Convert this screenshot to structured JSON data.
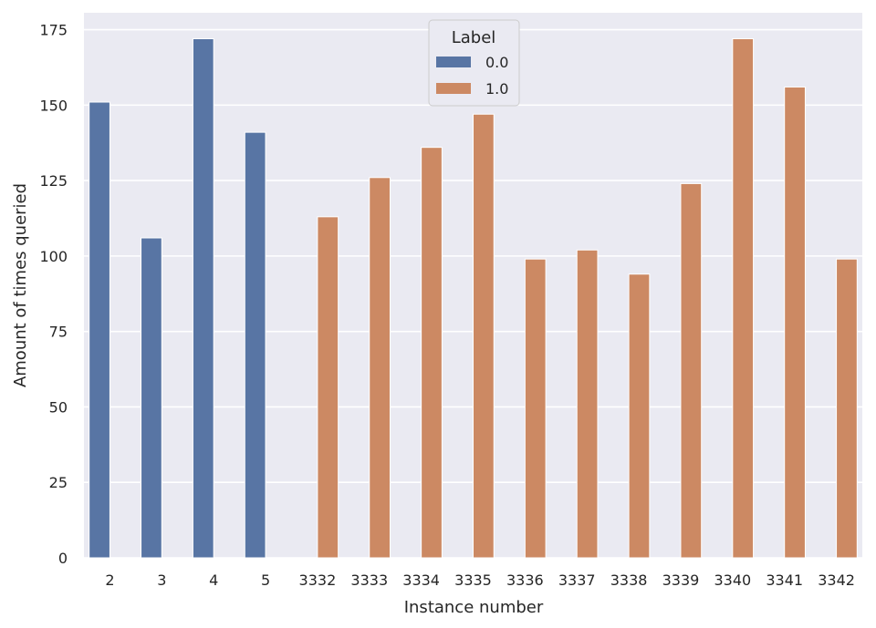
{
  "chart_data": {
    "type": "bar",
    "xlabel": "Instance number",
    "ylabel": "Amount of times queried",
    "categories": [
      "2",
      "3",
      "4",
      "5",
      "3332",
      "3333",
      "3334",
      "3335",
      "3336",
      "3337",
      "3338",
      "3339",
      "3340",
      "3341",
      "3342"
    ],
    "legend": {
      "title": "Label",
      "position": "top-center"
    },
    "series": [
      {
        "name": "0.0",
        "color": "#5875a4",
        "values": [
          151,
          106,
          172,
          141,
          null,
          null,
          null,
          null,
          null,
          null,
          null,
          null,
          null,
          null,
          null
        ]
      },
      {
        "name": "1.0",
        "color": "#cc8963",
        "values": [
          null,
          null,
          null,
          null,
          113,
          126,
          136,
          147,
          99,
          102,
          94,
          124,
          172,
          156,
          99
        ]
      }
    ],
    "ylim": [
      0,
      180.6
    ],
    "yticks": [
      0,
      25,
      50,
      75,
      100,
      125,
      150,
      175
    ],
    "grid": true,
    "background": "#eaeaf2"
  }
}
